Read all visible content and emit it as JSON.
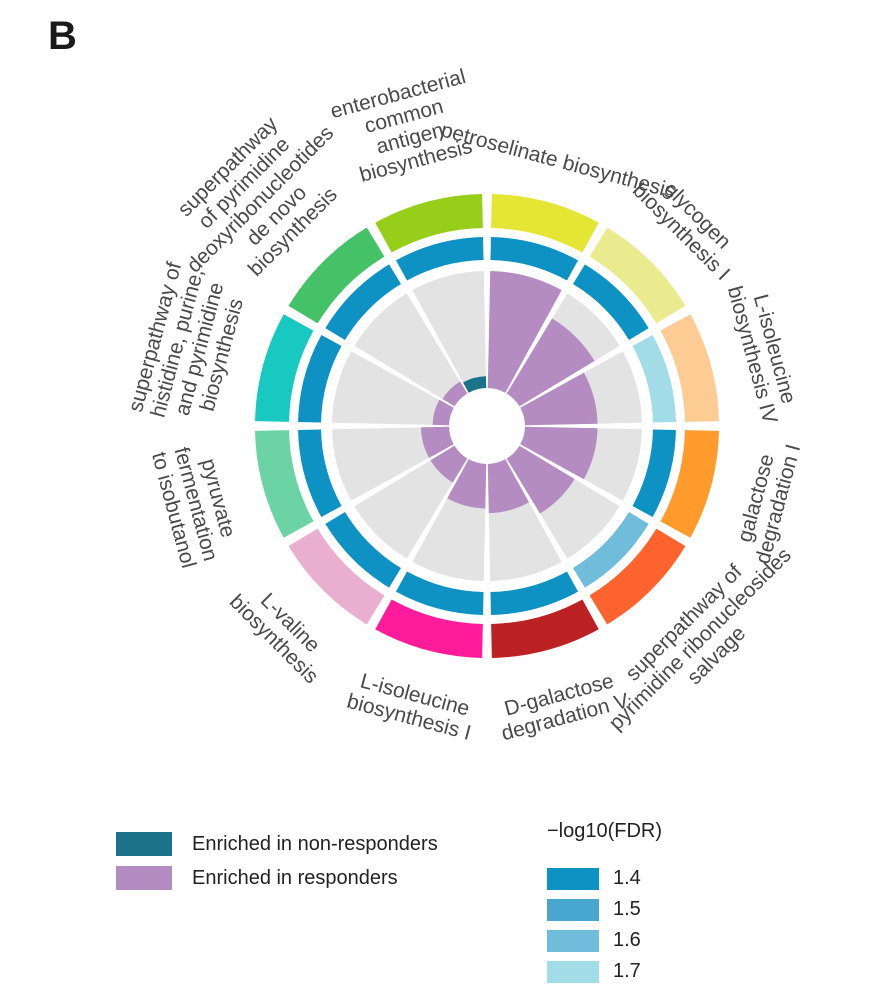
{
  "panel_label": "B",
  "chart_data": {
    "type": "circular-bar",
    "pathways": [
      {
        "name": "petroselinate biosynthesis",
        "value": 1.0,
        "direction": "responders",
        "neglog10_fdr": 1.4,
        "color": "#E5E534"
      },
      {
        "name": "glycogen biosynthesis I",
        "value": 0.75,
        "direction": "responders",
        "neglog10_fdr": 1.4,
        "color": "#EAEA8E"
      },
      {
        "name": "L-isoleucine biosynthesis IV",
        "value": 0.62,
        "direction": "responders",
        "neglog10_fdr": 1.7,
        "color": "#FDCB94"
      },
      {
        "name": "galactose degradation I",
        "value": 0.62,
        "direction": "responders",
        "neglog10_fdr": 1.4,
        "color": "#FF9A2C"
      },
      {
        "name": "superpathway of pyrimidine ribonucleosides salvage",
        "value": 0.55,
        "direction": "responders",
        "neglog10_fdr": 1.6,
        "color": "#FF642E"
      },
      {
        "name": "D-galactose degradation V",
        "value": 0.42,
        "direction": "responders",
        "neglog10_fdr": 1.4,
        "color": "#BC2223"
      },
      {
        "name": "L-isoleucine biosynthesis I",
        "value": 0.38,
        "direction": "responders",
        "neglog10_fdr": 1.4,
        "color": "#FF1C9A"
      },
      {
        "name": "L-valine biosynthesis",
        "value": 0.24,
        "direction": "responders",
        "neglog10_fdr": 1.4,
        "color": "#EAAFD0"
      },
      {
        "name": "pyruvate fermentation to isobutanol",
        "value": 0.24,
        "direction": "responders",
        "neglog10_fdr": 1.4,
        "color": "#6CD3A4"
      },
      {
        "name": "superpathway of histidine, purine, and pyrimidine biosynthesis",
        "value": 0.14,
        "direction": "responders",
        "neglog10_fdr": 1.4,
        "color": "#18C9C1"
      },
      {
        "name": "superpathway of pyrimidine deoxyribonucleotides de novo biosynthesis",
        "value": 0.12,
        "direction": "responders",
        "neglog10_fdr": 1.4,
        "color": "#45C168"
      },
      {
        "name": "enterobacterial common antigen biosynthesis",
        "value": 0.1,
        "direction": "non-responders",
        "neglog10_fdr": 1.4,
        "color": "#97CE1A"
      }
    ],
    "direction_colors": {
      "non-responders": "#1B7389",
      "responders": "#B48CC2"
    },
    "fdr_colors": [
      {
        "value": "1.4",
        "color": "#0E92C3"
      },
      {
        "value": "1.5",
        "color": "#48A6CF"
      },
      {
        "value": "1.6",
        "color": "#70BDDB"
      },
      {
        "value": "1.7",
        "color": "#A2DCE7"
      }
    ],
    "background_color": "#E3E3E3"
  },
  "legend": {
    "non_responders": "Enriched in non-responders",
    "responders": "Enriched in responders",
    "fdr_title": "−log10(FDR)",
    "fdr_levels": [
      "1.4",
      "1.5",
      "1.6",
      "1.7"
    ]
  }
}
